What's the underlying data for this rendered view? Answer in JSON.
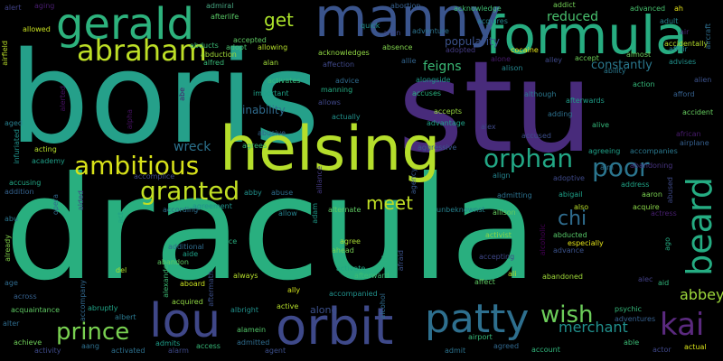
{
  "words": [
    {
      "text": "dracula",
      "color": "#29af7f"
    },
    {
      "text": "boris",
      "color": "#25a08a"
    },
    {
      "text": "stu",
      "color": "#482b7b"
    },
    {
      "text": "helsing",
      "color": "#b5de2b"
    },
    {
      "text": "formula",
      "color": "#27ad81"
    },
    {
      "text": "manny",
      "color": "#3a548c"
    },
    {
      "text": "orbit",
      "color": "#3e4989"
    },
    {
      "text": "gerald",
      "color": "#2db27d"
    },
    {
      "text": "abraham",
      "color": "#bddf26"
    },
    {
      "text": "patty",
      "color": "#2e6f8e"
    },
    {
      "text": "lou",
      "color": "#3f4788"
    },
    {
      "text": "beard",
      "color": "#25ac82"
    },
    {
      "text": "ambitious",
      "color": "#d8e219"
    },
    {
      "text": "granted",
      "color": "#c2df23"
    },
    {
      "text": "orphan",
      "color": "#22a785"
    },
    {
      "text": "poor",
      "color": "#2b758e"
    },
    {
      "text": "kai",
      "color": "#5b2a7f"
    },
    {
      "text": "prince",
      "color": "#79d151"
    },
    {
      "text": "wish",
      "color": "#6ccd5a"
    },
    {
      "text": "merchant",
      "color": "#21908d"
    },
    {
      "text": "meet",
      "color": "#c0df25"
    },
    {
      "text": "chi",
      "color": "#2f6c8e"
    },
    {
      "text": "abbey",
      "color": "#9dd93b"
    },
    {
      "text": "reduced",
      "color": "#48c16e"
    },
    {
      "text": "popularity",
      "color": "#3b528b"
    },
    {
      "text": "feigns",
      "color": "#3aba76"
    },
    {
      "text": "get",
      "color": "#ade42b"
    },
    {
      "text": "constantly",
      "color": "#2a788e"
    },
    {
      "text": "wreck",
      "color": "#2c728e"
    },
    {
      "text": "inability",
      "color": "#2f6b8e"
    },
    {
      "text": "along",
      "color": "#3c508b"
    },
    {
      "text": "alter",
      "color": "#2f6c8e"
    },
    {
      "text": "aging",
      "color": "#481d6f"
    },
    {
      "text": "admiral",
      "color": "#48a883"
    },
    {
      "text": "alert",
      "color": "#414287"
    },
    {
      "text": "afterlife",
      "color": "#58c765"
    },
    {
      "text": "abortion",
      "color": "#35608d"
    },
    {
      "text": "acknowledge",
      "color": "#3fbc73"
    },
    {
      "text": "addict",
      "color": "#73d056"
    },
    {
      "text": "ah",
      "color": "#e5e419"
    },
    {
      "text": "advanced",
      "color": "#48c16e"
    },
    {
      "text": "adult",
      "color": "#26828e"
    },
    {
      "text": "air",
      "color": "#482475"
    },
    {
      "text": "airfield",
      "color": "#b8de29"
    },
    {
      "text": "allowed",
      "color": "#c8e020"
    },
    {
      "text": "abducts",
      "color": "#3bbb75"
    },
    {
      "text": "abduction",
      "color": "#a2da37"
    },
    {
      "text": "accepted",
      "color": "#5ec962"
    },
    {
      "text": "allowing",
      "color": "#b5de2b"
    },
    {
      "text": "adopt",
      "color": "#4ac16d"
    },
    {
      "text": "alfred",
      "color": "#38b977"
    },
    {
      "text": "alice",
      "color": "#37b878"
    },
    {
      "text": "alan",
      "color": "#9fda3a"
    },
    {
      "text": "acknowledges",
      "color": "#90d743"
    },
    {
      "text": "allen",
      "color": "#3e4989"
    },
    {
      "text": "absence",
      "color": "#81d34d"
    },
    {
      "text": "adventure",
      "color": "#2c728e"
    },
    {
      "text": "adopted",
      "color": "#443b84"
    },
    {
      "text": "acquires",
      "color": "#24868e"
    },
    {
      "text": "quick",
      "color": "#21918c"
    },
    {
      "text": "cocaine",
      "color": "#e5e419"
    },
    {
      "text": "alone",
      "color": "#481b6d"
    },
    {
      "text": "alley",
      "color": "#3e4989"
    },
    {
      "text": "accept",
      "color": "#6ece58"
    },
    {
      "text": "almost",
      "color": "#6ccd5a"
    },
    {
      "text": "accidentally",
      "color": "#b5de2b"
    },
    {
      "text": "affair",
      "color": "#26828e"
    },
    {
      "text": "aircraft",
      "color": "#2e6e8e"
    },
    {
      "text": "advises",
      "color": "#21918c"
    },
    {
      "text": "alien",
      "color": "#3b528b"
    },
    {
      "text": "ability",
      "color": "#2a788e"
    },
    {
      "text": "affection",
      "color": "#3f4889"
    },
    {
      "text": "advice",
      "color": "#2f6b8e"
    },
    {
      "text": "manning",
      "color": "#25ab82"
    },
    {
      "text": "activates",
      "color": "#35b779"
    },
    {
      "text": "allie",
      "color": "#32648e"
    },
    {
      "text": "alison",
      "color": "#24868e"
    },
    {
      "text": "alongside",
      "color": "#1f988b"
    },
    {
      "text": "accuses",
      "color": "#2ab07f"
    },
    {
      "text": "important",
      "color": "#1fa188"
    },
    {
      "text": "allows",
      "color": "#3f4788"
    },
    {
      "text": "actually",
      "color": "#21918c"
    },
    {
      "text": "although",
      "color": "#2a778e"
    },
    {
      "text": "afterwards",
      "color": "#1f9e89"
    },
    {
      "text": "action",
      "color": "#35b779"
    },
    {
      "text": "afford",
      "color": "#35608d"
    },
    {
      "text": "adding",
      "color": "#2d708e"
    },
    {
      "text": "alerted",
      "color": "#471063"
    },
    {
      "text": "abe",
      "color": "#481769"
    },
    {
      "text": "alpha",
      "color": "#471164"
    },
    {
      "text": "accepts",
      "color": "#98d83e"
    },
    {
      "text": "advantage",
      "color": "#1fa188"
    },
    {
      "text": "accused",
      "color": "#3c4f8a"
    },
    {
      "text": "alive",
      "color": "#35b779"
    },
    {
      "text": "accident",
      "color": "#65cb5e"
    },
    {
      "text": "aged",
      "color": "#277f8e"
    },
    {
      "text": "abusive",
      "color": "#34618d"
    },
    {
      "text": "aggressive",
      "color": "#38588c"
    },
    {
      "text": "alex",
      "color": "#3e4a89"
    },
    {
      "text": "african",
      "color": "#481b6d"
    },
    {
      "text": "airplane",
      "color": "#355f8d"
    },
    {
      "text": "infuriated",
      "color": "#20928c"
    },
    {
      "text": "acting",
      "color": "#b5de2b"
    },
    {
      "text": "agrees",
      "color": "#37b878"
    },
    {
      "text": "agreeing",
      "color": "#1fa088"
    },
    {
      "text": "accompanies",
      "color": "#2a788e"
    },
    {
      "text": "academy",
      "color": "#1f9f88"
    },
    {
      "text": "align",
      "color": "#25848e"
    },
    {
      "text": "aim",
      "color": "#2d708e"
    },
    {
      "text": "adoptive",
      "color": "#3e4989"
    },
    {
      "text": "abandoning",
      "color": "#46337f"
    },
    {
      "text": "accomplice",
      "color": "#3e4989"
    },
    {
      "text": "accusing",
      "color": "#22a785"
    },
    {
      "text": "abby",
      "color": "#21918c"
    },
    {
      "text": "abuse",
      "color": "#2e6e8e"
    },
    {
      "text": "alliance",
      "color": "#443983"
    },
    {
      "text": "agency",
      "color": "#38588c"
    },
    {
      "text": "address",
      "color": "#20a386"
    },
    {
      "text": "addition",
      "color": "#34618d"
    },
    {
      "text": "aided",
      "color": "#443983"
    },
    {
      "text": "agreement",
      "color": "#21918c"
    },
    {
      "text": "adam",
      "color": "#1f9a8a"
    },
    {
      "text": "admitting",
      "color": "#2c718e"
    },
    {
      "text": "abigail",
      "color": "#1fa088"
    },
    {
      "text": "aaron",
      "color": "#7ad151"
    },
    {
      "text": "abused",
      "color": "#3e4a89"
    },
    {
      "text": "also",
      "color": "#b8de29"
    },
    {
      "text": "according",
      "color": "#2e6e8e"
    },
    {
      "text": "unbeknownst",
      "color": "#26818e"
    },
    {
      "text": "allison",
      "color": "#65cb5e"
    },
    {
      "text": "acquire",
      "color": "#89d548"
    },
    {
      "text": "actress",
      "color": "#481f70"
    },
    {
      "text": "allow",
      "color": "#26828e"
    },
    {
      "text": "alternate",
      "color": "#5ec962"
    },
    {
      "text": "abu",
      "color": "#2b748e"
    },
    {
      "text": "opera",
      "color": "#31688e"
    },
    {
      "text": "act",
      "color": "#1fa088"
    },
    {
      "text": "aide",
      "color": "#1fa188"
    },
    {
      "text": "ace",
      "color": "#29af7f"
    },
    {
      "text": "activist",
      "color": "#89d548"
    },
    {
      "text": "abducted",
      "color": "#56c667"
    },
    {
      "text": "advance",
      "color": "#3b528b"
    },
    {
      "text": "especially",
      "color": "#e5e419"
    },
    {
      "text": "ago",
      "color": "#25ab82"
    },
    {
      "text": "already",
      "color": "#84d44b"
    },
    {
      "text": "additional",
      "color": "#2f6c8e"
    },
    {
      "text": "agree",
      "color": "#a8db34"
    },
    {
      "text": "alcoholic",
      "color": "#440154"
    },
    {
      "text": "afraid",
      "color": "#3b528b"
    },
    {
      "text": "abandon",
      "color": "#5ec962"
    },
    {
      "text": "ahead",
      "color": "#75d054"
    },
    {
      "text": "accepting",
      "color": "#3f4788"
    },
    {
      "text": "del",
      "color": "#ade42b"
    },
    {
      "text": "aftermath",
      "color": "#3c4f8a"
    },
    {
      "text": "activate",
      "color": "#22a785"
    },
    {
      "text": "ali",
      "color": "#bddf26"
    },
    {
      "text": "abandoned",
      "color": "#a0da39"
    },
    {
      "text": "alec",
      "color": "#424086"
    },
    {
      "text": "age",
      "color": "#2f6b8e"
    },
    {
      "text": "aboard",
      "color": "#c8e020"
    },
    {
      "text": "always",
      "color": "#b5de2b"
    },
    {
      "text": "afterward",
      "color": "#3dbc74"
    },
    {
      "text": "affect",
      "color": "#5ec962"
    },
    {
      "text": "aid",
      "color": "#31b57b"
    },
    {
      "text": "across",
      "color": "#35608d"
    },
    {
      "text": "alexander",
      "color": "#3dbc74"
    },
    {
      "text": "acquired",
      "color": "#90d743"
    },
    {
      "text": "accompanied",
      "color": "#21918c"
    },
    {
      "text": "ally",
      "color": "#d2e21b"
    },
    {
      "text": "add",
      "color": "#2ab07f"
    },
    {
      "text": "acquaintance",
      "color": "#5ec962"
    },
    {
      "text": "abruptly",
      "color": "#20a386"
    },
    {
      "text": "accompany",
      "color": "#31688e"
    },
    {
      "text": "active",
      "color": "#b5de2b"
    },
    {
      "text": "alcohol",
      "color": "#2f6c8e"
    },
    {
      "text": "albright",
      "color": "#21918c"
    },
    {
      "text": "albert",
      "color": "#2a788e"
    },
    {
      "text": "psychic",
      "color": "#35b779"
    },
    {
      "text": "adventures",
      "color": "#355f8d"
    },
    {
      "text": "alarm",
      "color": "#3e4989"
    },
    {
      "text": "alamein",
      "color": "#52c569"
    },
    {
      "text": "achieve",
      "color": "#6ece58"
    },
    {
      "text": "activity",
      "color": "#3e4a89"
    },
    {
      "text": "aang",
      "color": "#2e6f8e"
    },
    {
      "text": "activated",
      "color": "#2d708e"
    },
    {
      "text": "admits",
      "color": "#1f9e89"
    },
    {
      "text": "access",
      "color": "#37b878"
    },
    {
      "text": "admitted",
      "color": "#2f6c8e"
    },
    {
      "text": "agent",
      "color": "#3c4f8a"
    },
    {
      "text": "airport",
      "color": "#37b878"
    },
    {
      "text": "agreed",
      "color": "#31688e"
    },
    {
      "text": "account",
      "color": "#31b57b"
    },
    {
      "text": "admit",
      "color": "#2c728e"
    },
    {
      "text": "able",
      "color": "#3bbb75"
    },
    {
      "text": "actor",
      "color": "#3f4788"
    },
    {
      "text": "actual",
      "color": "#d8e219"
    }
  ]
}
